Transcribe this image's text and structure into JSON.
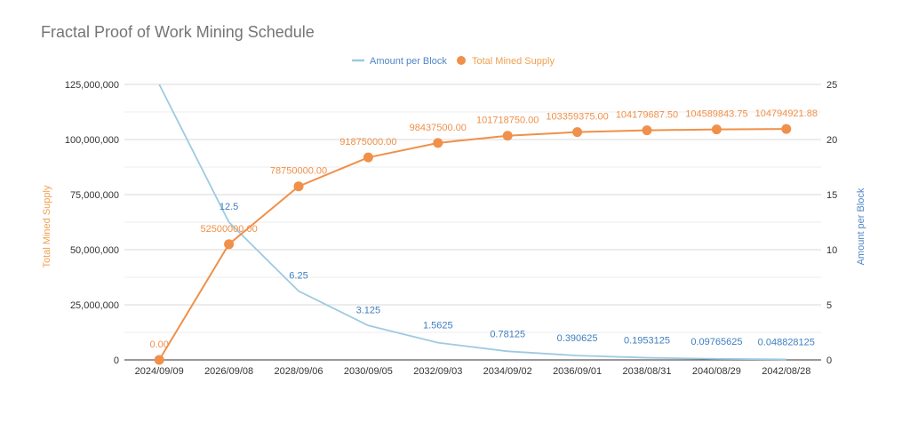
{
  "chart_data": {
    "type": "line",
    "title": "Fractal Proof of Work Mining Schedule",
    "categories": [
      "2024/09/09",
      "2026/09/08",
      "2028/09/06",
      "2030/09/05",
      "2032/09/03",
      "2034/09/02",
      "2036/09/01",
      "2038/08/31",
      "2040/08/29",
      "2042/08/28"
    ],
    "left_axis": {
      "label": "Total Mined Supply",
      "ylim": [
        0,
        125000000
      ],
      "ticks": [
        "0",
        "25,000,000",
        "50,000,000",
        "75,000,000",
        "100,000,000",
        "125,000,000"
      ]
    },
    "right_axis": {
      "label": "Amount per Block",
      "ylim": [
        0,
        25
      ],
      "ticks": [
        "0",
        "5",
        "10",
        "15",
        "20",
        "25"
      ]
    },
    "legend_position": "top-center",
    "grid": true,
    "series": [
      {
        "name": "Amount per Block",
        "axis": "right",
        "color": "#9ecae1",
        "label_color": "#3f7fc0",
        "values": [
          25,
          12.5,
          6.25,
          3.125,
          1.5625,
          0.78125,
          0.390625,
          0.1953125,
          0.09765625,
          0.048828125
        ],
        "labels": [
          "",
          "12.5",
          "6.25",
          "3.125",
          "1.5625",
          "0.78125",
          "0.390625",
          "0.1953125",
          "0.09765625",
          "0.048828125"
        ]
      },
      {
        "name": "Total Mined Supply",
        "axis": "left",
        "color": "#f0904a",
        "label_color": "#f0904a",
        "values": [
          0,
          52500000,
          78750000,
          91875000,
          98437500,
          101718750,
          103359375,
          104179687.5,
          104589843.75,
          104794921.88
        ],
        "labels": [
          "0.00",
          "52500000.00",
          "78750000.00",
          "91875000.00",
          "98437500.00",
          "101718750.00",
          "103359375.00",
          "104179687.50",
          "104589843.75",
          "104794921.88"
        ]
      }
    ]
  }
}
